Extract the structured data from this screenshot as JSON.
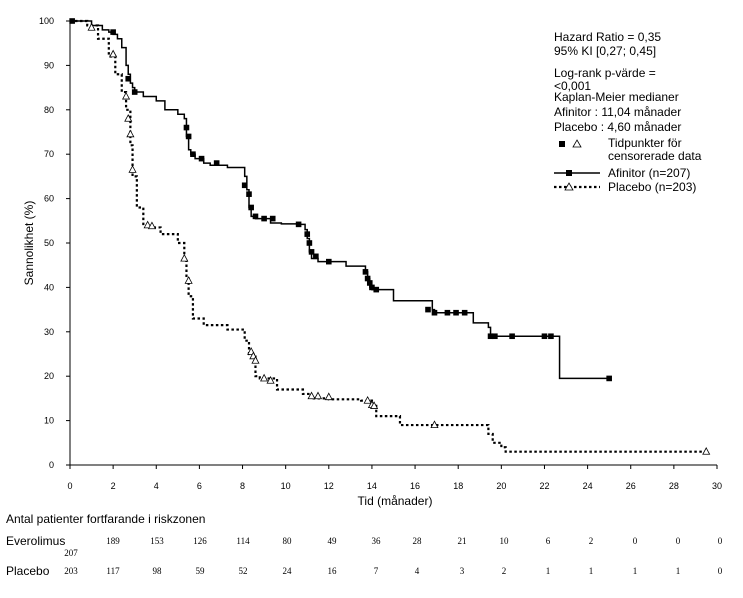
{
  "chart_data": {
    "type": "line",
    "title": "",
    "xlabel": "Tid (månader)",
    "ylabel": "Sannolikhet (%)",
    "xlim": [
      0,
      30
    ],
    "ylim": [
      0,
      100
    ],
    "x_ticks": [
      "0",
      "2",
      "4",
      "6",
      "8",
      "10",
      "12",
      "14",
      "16",
      "18",
      "20",
      "22",
      "24",
      "26",
      "28",
      "30"
    ],
    "y_ticks": [
      "0",
      "10",
      "20",
      "30",
      "40",
      "50",
      "60",
      "70",
      "80",
      "90",
      "100"
    ],
    "grid": false,
    "annotations": {
      "hazard_ratio": "Hazard Ratio = 0,35",
      "ci": "95% KI [0,27; 0,45]",
      "logrank_1": "Log-rank p-värde =",
      "logrank_2": "<0,001",
      "km_title": "Kaplan-Meier  medianer",
      "km_afinitor": "Afinitor : 11,04 månader",
      "km_placebo": "Placebo : 4,60 månader"
    },
    "legend": {
      "placement": "top-right",
      "censored_1": "Tidpunkter för",
      "censored_2": "censorerade data",
      "afinitor": "Afinitor (n=207)",
      "placebo": "Placebo (n=203)"
    },
    "series": [
      {
        "name": "Afinitor (n=207)",
        "style": "solid",
        "marker": "filled-square",
        "x": [
          0,
          1.0,
          1.5,
          1.8,
          2.0,
          2.2,
          2.4,
          2.6,
          2.7,
          2.8,
          2.9,
          3.0,
          3.4,
          4.0,
          4.4,
          5.0,
          5.3,
          5.4,
          5.5,
          5.6,
          5.8,
          6.2,
          6.5,
          7.3,
          8.1,
          8.2,
          8.3,
          8.4,
          8.6,
          8.8,
          9.3,
          9.8,
          10.6,
          10.9,
          11.0,
          11.1,
          11.2,
          11.5,
          12.8,
          13.7,
          13.8,
          13.9,
          14.0,
          14.1,
          15.0,
          16.8,
          16.9,
          18.7,
          19.4,
          19.5,
          22.7,
          25.0
        ],
        "y": [
          100,
          99,
          98,
          97.5,
          97,
          96,
          94,
          90,
          88,
          86,
          85,
          84,
          83,
          82,
          80,
          79,
          78,
          74,
          71,
          70,
          69,
          68,
          67.5,
          67,
          65,
          62,
          58,
          56,
          55.5,
          55.5,
          54.5,
          54.3,
          54.2,
          53,
          51,
          48,
          46.5,
          45.8,
          44.8,
          43.5,
          42,
          40,
          39.5,
          39.5,
          37,
          35,
          34.3,
          32,
          31,
          29,
          19.5,
          19.5
        ],
        "censored": [
          [
            0.1,
            100
          ],
          [
            2.0,
            97.5
          ],
          [
            2.7,
            87
          ],
          [
            3.0,
            84
          ],
          [
            5.4,
            76
          ],
          [
            5.5,
            74
          ],
          [
            5.7,
            70
          ],
          [
            6.1,
            69
          ],
          [
            6.8,
            68
          ],
          [
            8.1,
            63
          ],
          [
            8.3,
            61
          ],
          [
            8.4,
            58
          ],
          [
            8.6,
            56
          ],
          [
            9.0,
            55.5
          ],
          [
            9.4,
            55.5
          ],
          [
            10.6,
            54.2
          ],
          [
            11.0,
            52
          ],
          [
            11.1,
            50
          ],
          [
            11.2,
            48
          ],
          [
            11.4,
            47
          ],
          [
            12.0,
            45.8
          ],
          [
            13.7,
            43.5
          ],
          [
            13.8,
            42
          ],
          [
            13.9,
            41
          ],
          [
            14.0,
            40
          ],
          [
            14.2,
            39.5
          ],
          [
            16.6,
            35
          ],
          [
            16.9,
            34.3
          ],
          [
            17.5,
            34.3
          ],
          [
            17.9,
            34.3
          ],
          [
            18.3,
            34.3
          ],
          [
            19.5,
            29
          ],
          [
            19.7,
            29
          ],
          [
            20.5,
            29
          ],
          [
            22.0,
            29
          ],
          [
            22.3,
            29
          ],
          [
            25.0,
            19.5
          ]
        ]
      },
      {
        "name": "Placebo (n=203)",
        "style": "dotted",
        "marker": "open-triangle",
        "x": [
          0,
          0.8,
          1.3,
          1.8,
          2.1,
          2.4,
          2.6,
          2.8,
          2.9,
          3.1,
          3.4,
          3.7,
          4.2,
          5.0,
          5.3,
          5.4,
          5.5,
          5.7,
          6.2,
          7.3,
          8.1,
          8.3,
          8.6,
          8.8,
          9.6,
          10.8,
          11.2,
          12.0,
          13.5,
          14.0,
          14.2,
          15.3,
          16.8,
          19.4,
          19.6,
          20.0,
          20.2,
          29.5
        ],
        "y": [
          100,
          99,
          96,
          92,
          88,
          84,
          80,
          72,
          65,
          58,
          54,
          53.5,
          52,
          50,
          46,
          42,
          38,
          33,
          31.5,
          30.5,
          28,
          25,
          20,
          19.5,
          17,
          16,
          15,
          14.8,
          14.5,
          13.8,
          11,
          9,
          9,
          7,
          5,
          4,
          3,
          3
        ],
        "censored": [
          [
            1.0,
            98.5
          ],
          [
            2.0,
            92.5
          ],
          [
            2.6,
            83
          ],
          [
            2.7,
            78
          ],
          [
            2.8,
            74.5
          ],
          [
            2.9,
            66.5
          ],
          [
            3.6,
            54
          ],
          [
            3.8,
            53.8
          ],
          [
            5.3,
            46.5
          ],
          [
            5.5,
            41.5
          ],
          [
            8.4,
            25.5
          ],
          [
            8.5,
            24.5
          ],
          [
            8.6,
            23.5
          ],
          [
            9.0,
            19.5
          ],
          [
            9.3,
            19
          ],
          [
            11.2,
            15.5
          ],
          [
            11.5,
            15.5
          ],
          [
            12.0,
            15.3
          ],
          [
            13.8,
            14.5
          ],
          [
            14.0,
            13.5
          ],
          [
            14.1,
            13.3
          ],
          [
            16.9,
            9
          ],
          [
            29.5,
            3
          ]
        ]
      }
    ]
  },
  "risk_table": {
    "title": "Antal patienter fortfarande i riskzonen",
    "times": [
      "0",
      "2",
      "4",
      "6",
      "8",
      "10",
      "12",
      "14",
      "16",
      "18",
      "20",
      "22",
      "24",
      "26",
      "28",
      "30"
    ],
    "rows": [
      {
        "label": "Everolimus",
        "first_value": "207",
        "values": [
          "189",
          "153",
          "126",
          "114",
          "80",
          "49",
          "36",
          "28",
          "21",
          "10",
          "6",
          "2",
          "0",
          "0",
          "0"
        ]
      },
      {
        "label": "Placebo",
        "first_value": "203",
        "values": [
          "117",
          "98",
          "59",
          "52",
          "24",
          "16",
          "7",
          "4",
          "3",
          "2",
          "1",
          "1",
          "1",
          "1",
          "0"
        ]
      }
    ]
  }
}
